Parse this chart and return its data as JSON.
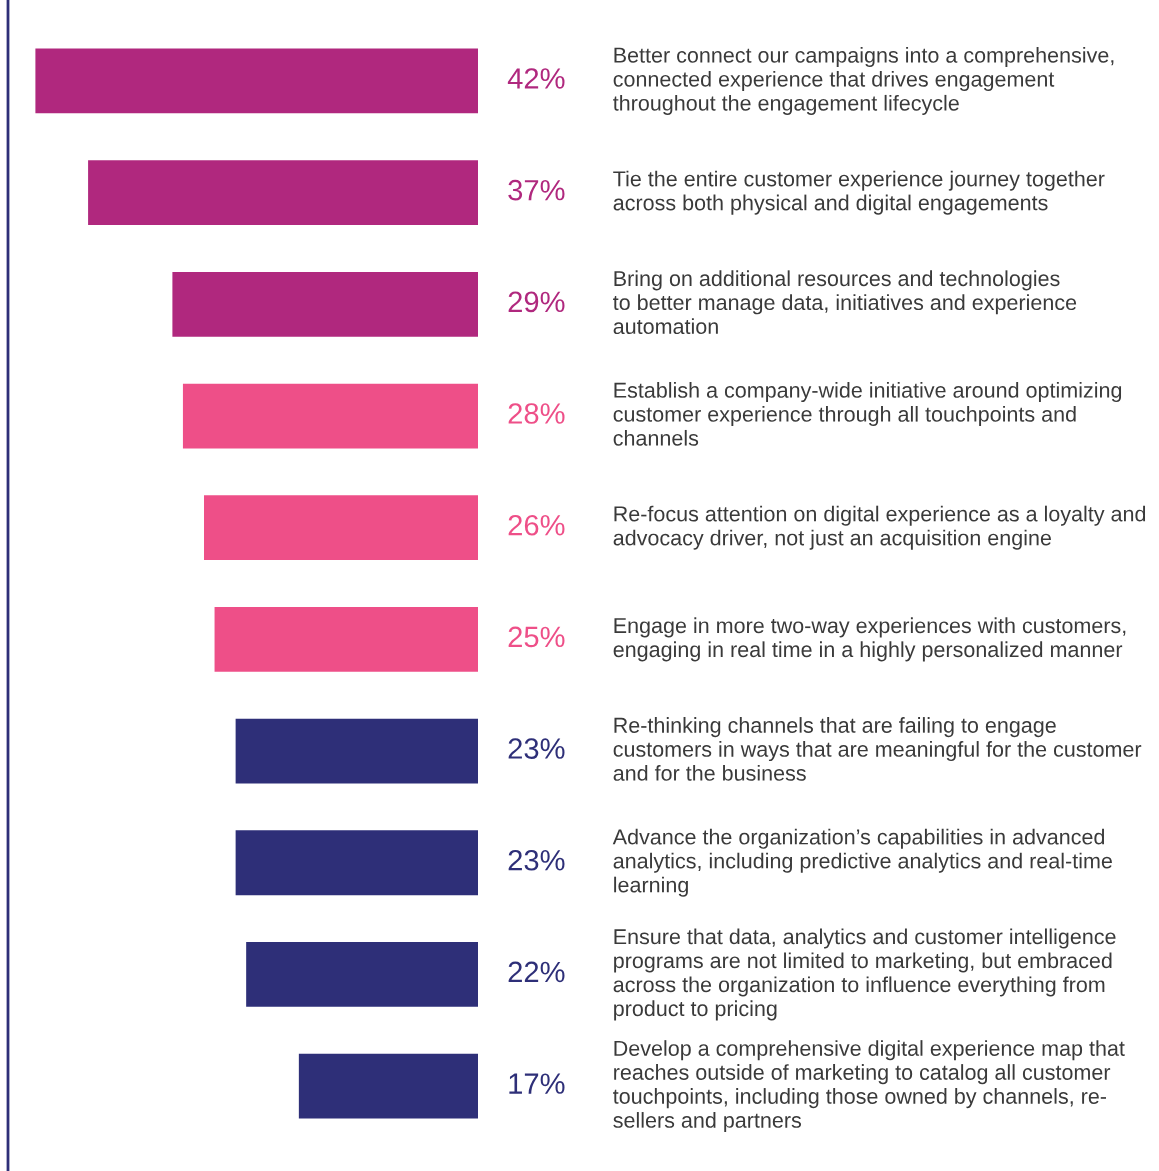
{
  "chart_data": {
    "type": "bar",
    "orientation": "horizontal",
    "data_labels": true,
    "xlim": [
      44.6,
      0
    ],
    "categories": [
      "Better connect our campaigns into a comprehensive,\nconnected experience that drives engagement\nthroughout the engagement lifecycle",
      "Tie the entire customer experience journey together\nacross both physical and digital engagements",
      "Bring on additional resources and technologies\nto better manage data, initiatives and experience\nautomation",
      "Establish a company-wide initiative around optimizing\ncustomer experience through all touchpoints and\nchannels",
      "Re-focus attention on digital experience as a loyalty and\nadvocacy driver, not just an acquisition engine",
      "Engage in more two-way experiences with customers,\nengaging in real time in a highly personalized manner",
      "Re-thinking channels that are failing to engage\ncustomers in ways that are meaningful for the customer\nand for the business",
      "Advance the organization’s capabilities in advanced\nanalytics, including predictive analytics and real-time\nlearning",
      "Ensure that data, analytics and customer intelligence\nprograms are not limited to marketing, but embraced\nacross the organization to influence everything from\nproduct to pricing",
      "Develop a comprehensive digital experience map that\nreaches outside of marketing to catalog all customer\ntouchpoints, including those owned by channels, re-\nsellers and partners"
    ],
    "values": [
      42,
      37,
      29,
      28,
      26,
      25,
      23,
      23,
      22,
      17
    ],
    "value_labels": [
      "42%",
      "37%",
      "29%",
      "28%",
      "26%",
      "25%",
      "23%",
      "23%",
      "22%",
      "17%"
    ],
    "colors": [
      "#b0287e",
      "#b0287e",
      "#b0287e",
      "#ee4f88",
      "#ee4f88",
      "#ee4f88",
      "#2e2f78",
      "#2e2f78",
      "#2e2f78",
      "#2e2f78"
    ]
  }
}
